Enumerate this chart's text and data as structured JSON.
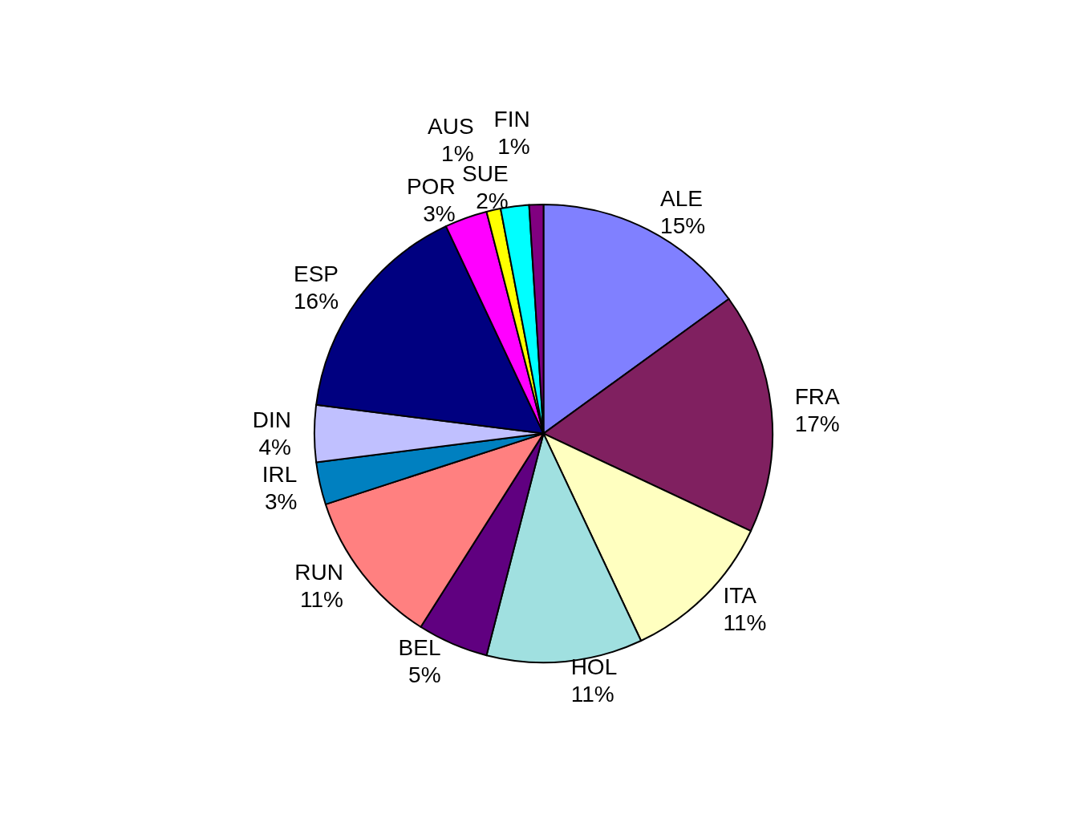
{
  "chart_data": {
    "type": "pie",
    "categories": [
      "ALE",
      "FRA",
      "ITA",
      "HOL",
      "BEL",
      "RUN",
      "IRL",
      "DIN",
      "ESP",
      "POR",
      "AUS",
      "SUE",
      "FIN"
    ],
    "values": [
      15,
      17,
      11,
      11,
      5,
      11,
      3,
      4,
      16,
      3,
      1,
      2,
      1
    ],
    "value_labels": [
      "15%",
      "17%",
      "11%",
      "11%",
      "5%",
      "11%",
      "3%",
      "4%",
      "16%",
      "3%",
      "1%",
      "2%",
      "1%"
    ],
    "colors": [
      "#8080ff",
      "#802060",
      "#ffffc0",
      "#a0e0e0",
      "#600080",
      "#ff8080",
      "#0080c0",
      "#c0c0ff",
      "#000080",
      "#ff00ff",
      "#ffff00",
      "#00ffff",
      "#800080"
    ],
    "legend": false
  }
}
